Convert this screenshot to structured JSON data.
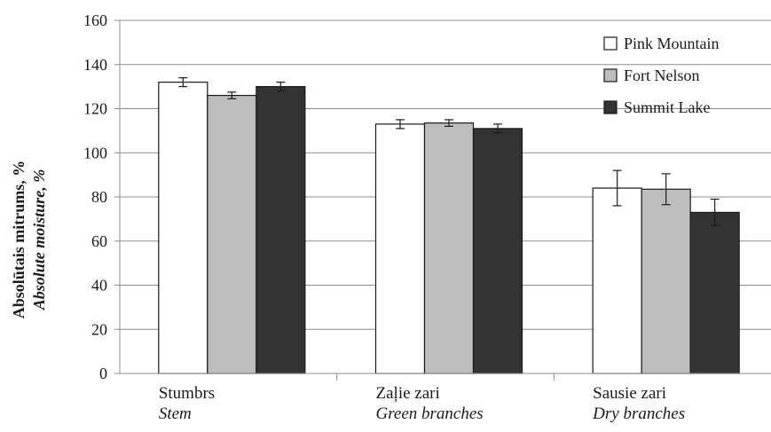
{
  "chart_data": {
    "type": "bar",
    "ylabel": "Absolūtais mitrums, %",
    "ylabel_sub": "Absolute moisture, %",
    "ylim": [
      0,
      160
    ],
    "yticks": [
      0,
      20,
      40,
      60,
      80,
      100,
      120,
      140,
      160
    ],
    "grid": true,
    "legend_position": "top-right",
    "categories": [
      {
        "label": "Stumbrs",
        "sublabel": "Stem"
      },
      {
        "label": "Zaļie zari",
        "sublabel": "Green branches"
      },
      {
        "label": "Sausie zari",
        "sublabel": "Dry branches"
      }
    ],
    "series": [
      {
        "name": "Pink Mountain",
        "color": "#ffffff",
        "values": [
          132,
          113,
          84
        ],
        "errors": [
          2,
          2,
          8
        ]
      },
      {
        "name": "Fort Nelson",
        "color": "#bdbdbd",
        "values": [
          126,
          113.5,
          83.5
        ],
        "errors": [
          1.5,
          1.5,
          7
        ]
      },
      {
        "name": "Summit Lake",
        "color": "#333333",
        "values": [
          130,
          111,
          73
        ],
        "errors": [
          2,
          2,
          6
        ]
      }
    ]
  }
}
